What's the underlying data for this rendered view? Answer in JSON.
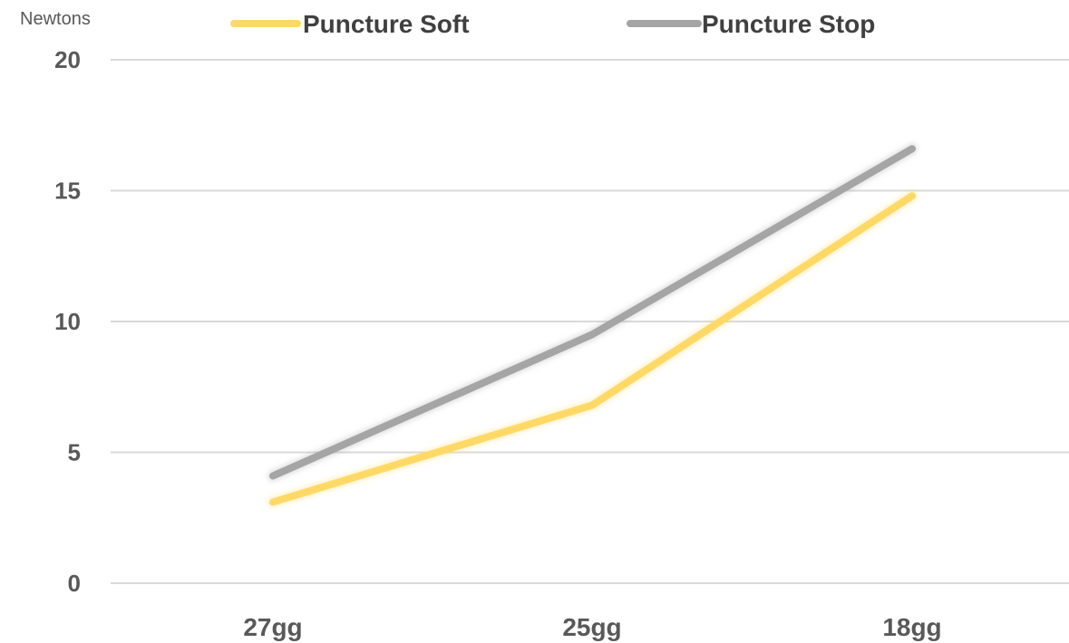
{
  "chart_data": {
    "type": "line",
    "ylabel": "Newtons",
    "categories": [
      "27gg",
      "25gg",
      "18gg"
    ],
    "ylim": [
      0,
      20
    ],
    "yticks": [
      0,
      5,
      10,
      15,
      20
    ],
    "grid": true,
    "legend_position": "top",
    "series": [
      {
        "name": "Puncture Soft",
        "color": "#FFD966",
        "values": [
          3.1,
          6.8,
          14.8
        ]
      },
      {
        "name": "Puncture Stop",
        "color": "#A5A5A5",
        "values": [
          4.1,
          9.5,
          16.6
        ]
      }
    ]
  }
}
